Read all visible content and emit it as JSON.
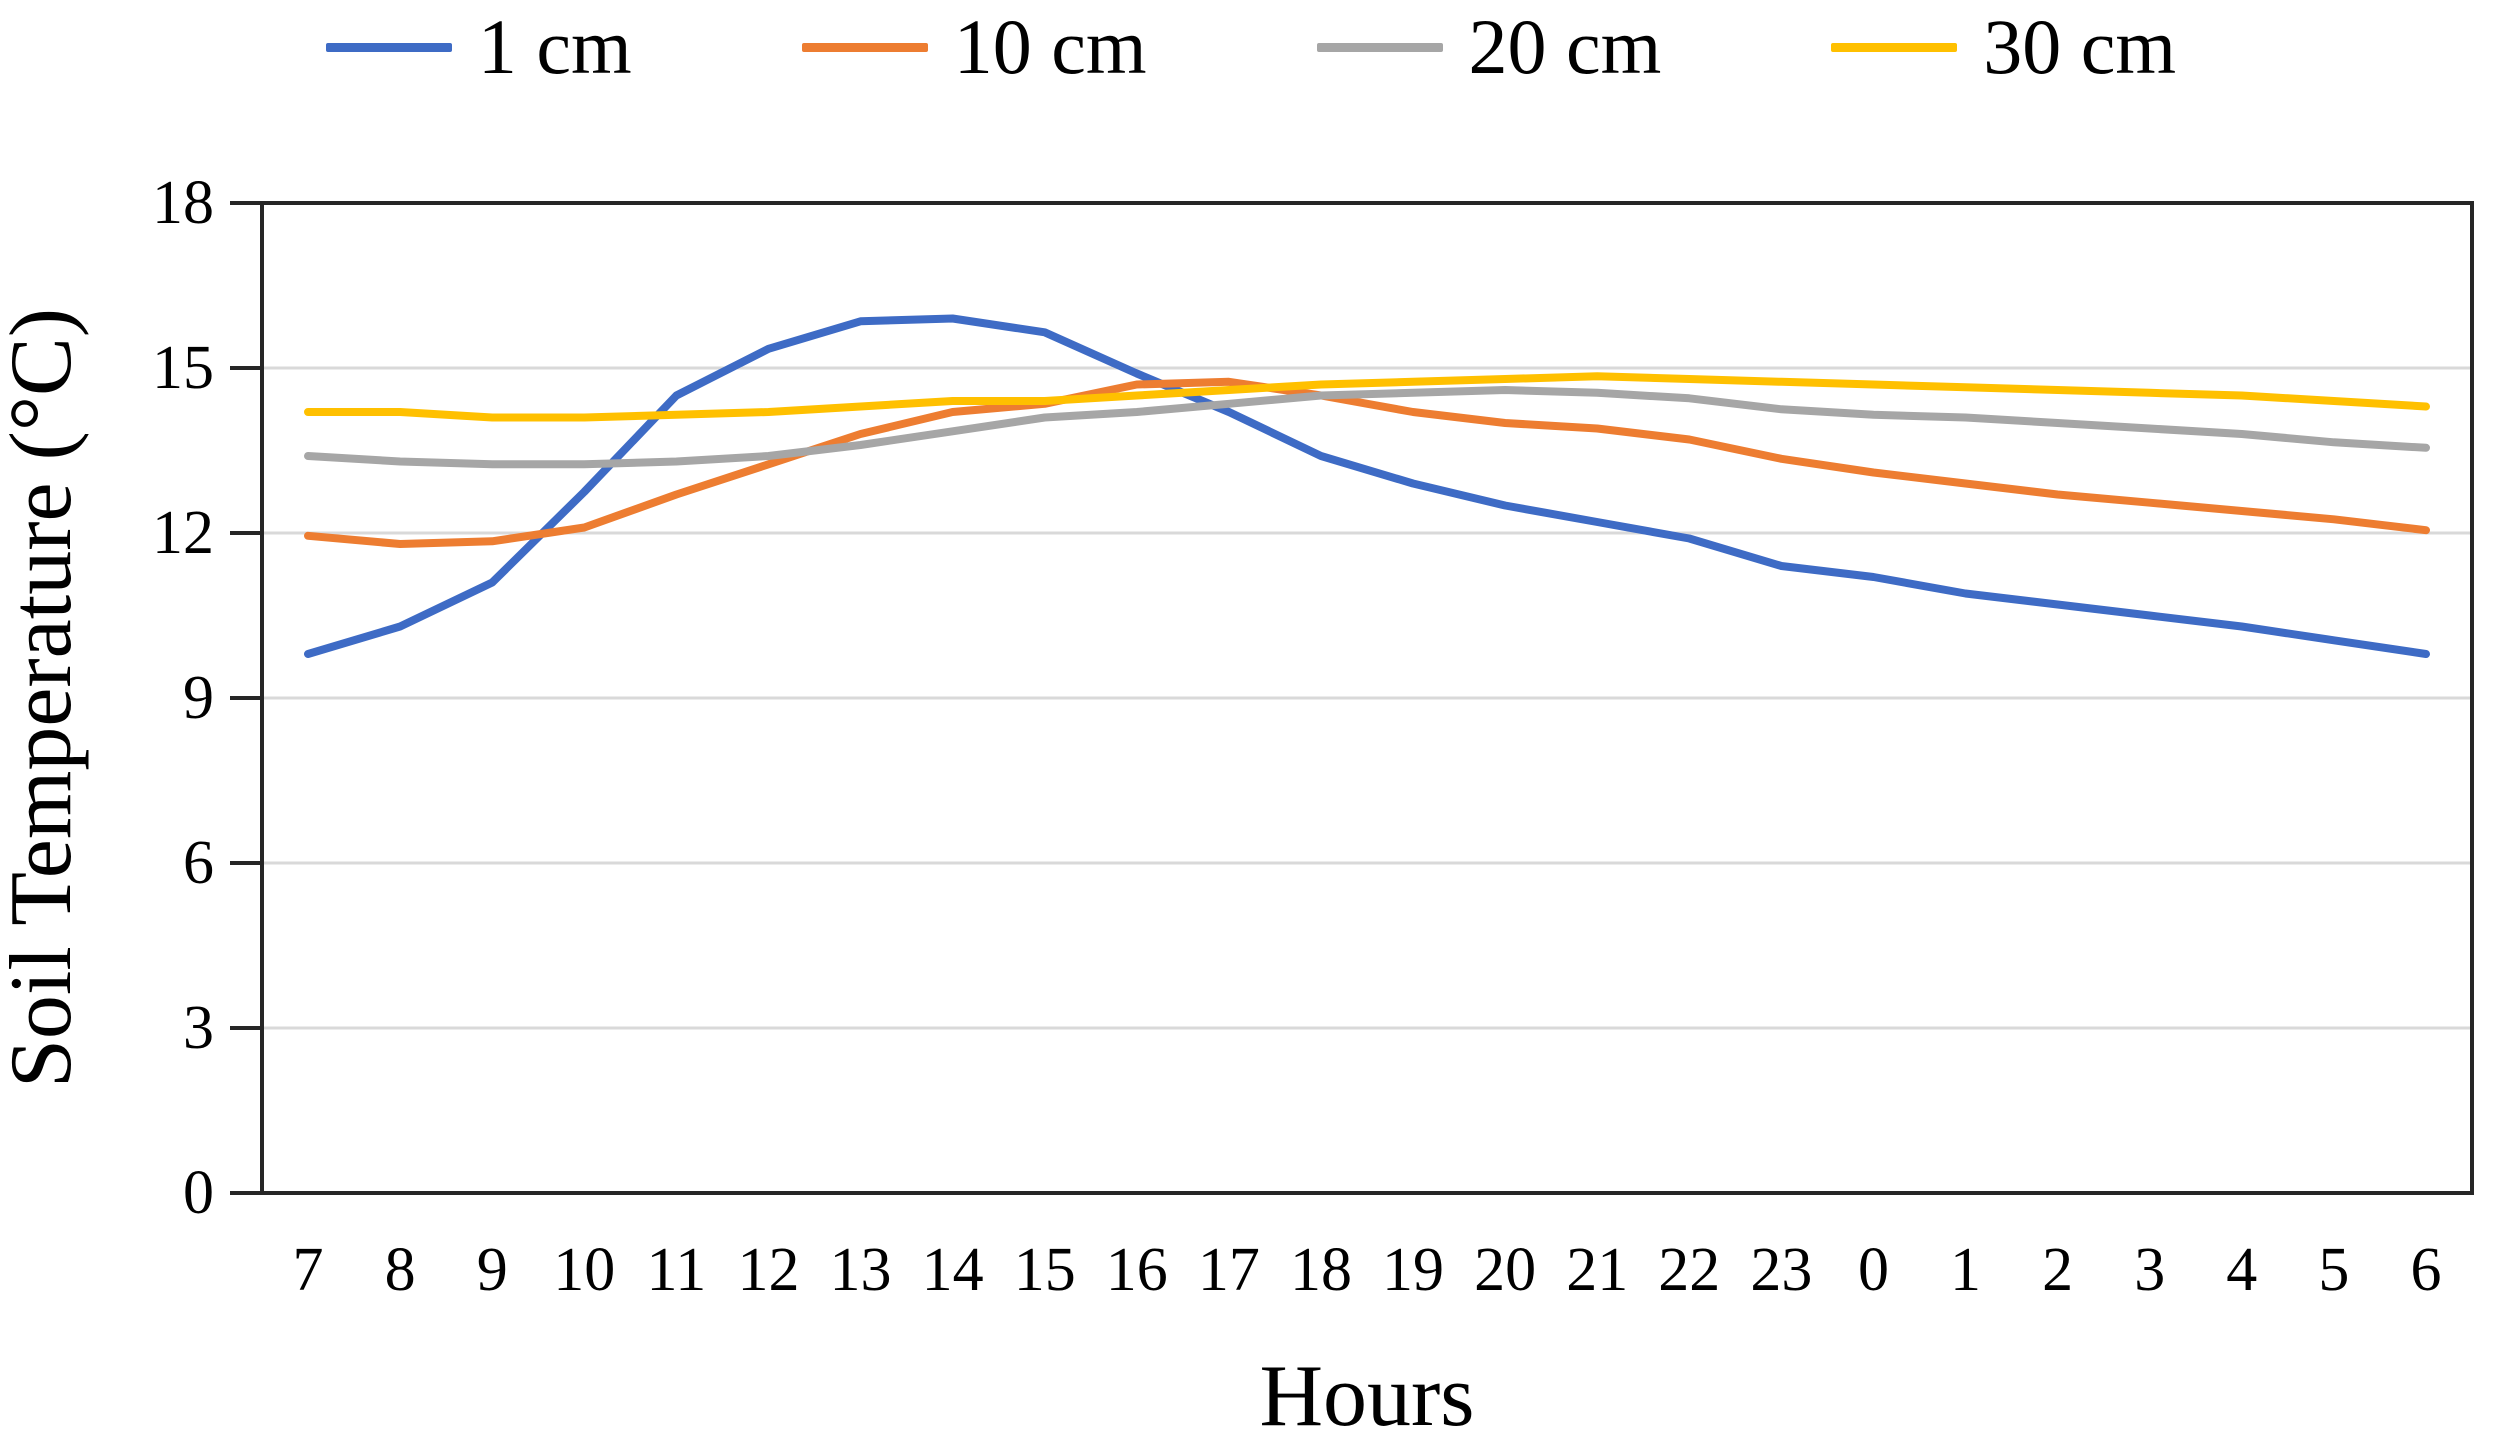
{
  "chart_data": {
    "type": "line",
    "title": "",
    "xlabel": "Hours",
    "ylabel": "Soil Temperature (°C)",
    "categories": [
      "7",
      "8",
      "9",
      "10",
      "11",
      "12",
      "13",
      "14",
      "15",
      "16",
      "17",
      "18",
      "19",
      "20",
      "21",
      "22",
      "23",
      "0",
      "1",
      "2",
      "3",
      "4",
      "5",
      "6"
    ],
    "y_ticks": [
      0,
      3,
      6,
      9,
      12,
      15,
      18
    ],
    "ylim": [
      0,
      18
    ],
    "grid": true,
    "legend_position": "top",
    "series": [
      {
        "name": "1 cm",
        "color": "#3E6BC5",
        "values": [
          9.8,
          10.3,
          11.1,
          12.75,
          14.5,
          15.35,
          15.85,
          15.9,
          15.65,
          14.9,
          14.2,
          13.4,
          12.9,
          12.5,
          12.2,
          11.9,
          11.4,
          11.2,
          10.9,
          10.7,
          10.5,
          10.3,
          10.05,
          9.8
        ]
      },
      {
        "name": "10 cm",
        "color": "#ED7D31",
        "values": [
          11.95,
          11.8,
          11.85,
          12.1,
          12.7,
          13.25,
          13.8,
          14.2,
          14.35,
          14.7,
          14.75,
          14.5,
          14.2,
          14.0,
          13.9,
          13.7,
          13.35,
          13.1,
          12.9,
          12.7,
          12.55,
          12.4,
          12.25,
          12.05
        ]
      },
      {
        "name": "20 cm",
        "color": "#A6A6A6",
        "values": [
          13.4,
          13.3,
          13.25,
          13.25,
          13.3,
          13.4,
          13.6,
          13.85,
          14.1,
          14.2,
          14.35,
          14.5,
          14.55,
          14.6,
          14.55,
          14.45,
          14.25,
          14.15,
          14.1,
          14.0,
          13.9,
          13.8,
          13.65,
          13.55
        ]
      },
      {
        "name": "30 cm",
        "color": "#FFC000",
        "values": [
          14.2,
          14.2,
          14.1,
          14.1,
          14.15,
          14.2,
          14.3,
          14.4,
          14.4,
          14.5,
          14.6,
          14.7,
          14.75,
          14.8,
          14.85,
          14.8,
          14.75,
          14.7,
          14.65,
          14.6,
          14.55,
          14.5,
          14.4,
          14.3
        ]
      }
    ]
  },
  "colors": {
    "axis": "#262626",
    "gridline": "#D9D9D9",
    "text": "#000000",
    "background": "#ffffff"
  }
}
